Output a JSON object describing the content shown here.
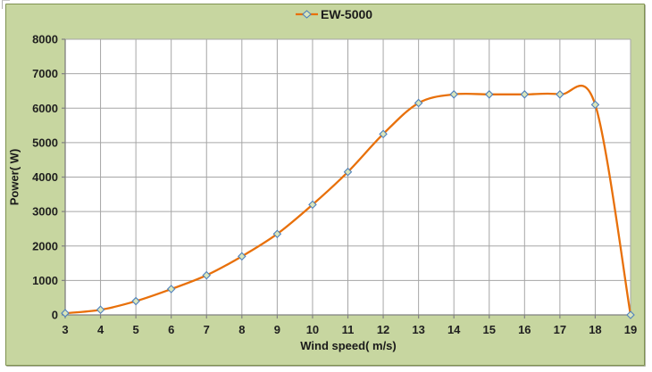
{
  "window": {
    "background": "#ffffff"
  },
  "legend": {
    "position": "top-center"
  },
  "chart_data": {
    "type": "line",
    "title": "",
    "xlabel": "Wind speed( m/s)",
    "ylabel": "Power( W)",
    "x": [
      3,
      4,
      5,
      6,
      7,
      8,
      9,
      10,
      11,
      12,
      13,
      14,
      15,
      16,
      17,
      18,
      19
    ],
    "series": [
      {
        "name": "EW-5000",
        "color": "#e8700a",
        "marker": "diamond",
        "values": [
          50,
          150,
          400,
          750,
          1150,
          1700,
          2350,
          3200,
          4150,
          5250,
          6150,
          6400,
          6400,
          6400,
          6400,
          6100,
          0
        ]
      }
    ],
    "xlim": [
      3,
      19
    ],
    "ylim": [
      0,
      8000
    ],
    "xticks": [
      3,
      4,
      5,
      6,
      7,
      8,
      9,
      10,
      11,
      12,
      13,
      14,
      15,
      16,
      17,
      18,
      19
    ],
    "yticks": [
      0,
      1000,
      2000,
      3000,
      4000,
      5000,
      6000,
      7000,
      8000
    ],
    "grid": true,
    "legend_position": "top-center",
    "smooth": true,
    "colors": {
      "panel_bg": "#c7d6a0",
      "panel_border": "#7e9150",
      "plot_bg": "#ffffff",
      "grid": "#a6a6a6",
      "axis": "#808080",
      "marker_fill": "#d9e5bb",
      "marker_stroke": "#4f81bd",
      "text": "#1f1f1f"
    }
  }
}
